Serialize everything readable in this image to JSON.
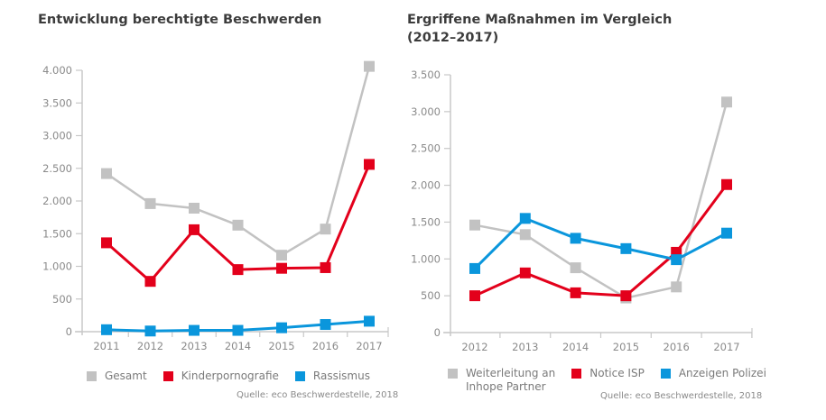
{
  "chart_data": [
    {
      "type": "line",
      "title": "Entwicklung berechtigte Beschwerden",
      "xlabel": "",
      "ylabel": "",
      "x": [
        "2011",
        "2012",
        "2013",
        "2014",
        "2015",
        "2016",
        "2017"
      ],
      "ylim": [
        0,
        4000
      ],
      "yticks": [
        0,
        500,
        1000,
        1500,
        2000,
        2500,
        3000,
        3500,
        4000
      ],
      "ytick_labels": [
        "0",
        "500",
        "1.000",
        "1.500",
        "2.000",
        "2.500",
        "3.000",
        "3.500",
        "4.000"
      ],
      "grid": false,
      "legend_position": "bottom",
      "series": [
        {
          "name": "Gesamt",
          "color": "#c2c2c2",
          "values": [
            2420,
            1960,
            1890,
            1630,
            1170,
            1570,
            4060
          ]
        },
        {
          "name": "Kinderpornografie",
          "color": "#e3001b",
          "values": [
            1360,
            770,
            1560,
            950,
            970,
            980,
            2560
          ]
        },
        {
          "name": "Rassismus",
          "color": "#0a96dc",
          "values": [
            30,
            10,
            20,
            20,
            60,
            110,
            160
          ]
        }
      ],
      "source": "Quelle: eco Beschwerdestelle, 2018"
    },
    {
      "type": "line",
      "title": "Ergriffene Maßnahmen im Vergleich (2012–2017)",
      "title_lines": [
        "Ergriffene Maßnahmen im Vergleich",
        "(2012–2017)"
      ],
      "xlabel": "",
      "ylabel": "",
      "x": [
        "2012",
        "2013",
        "2014",
        "2015",
        "2016",
        "2017"
      ],
      "ylim": [
        0,
        3500
      ],
      "yticks": [
        0,
        500,
        1000,
        1500,
        2000,
        2500,
        3000,
        3500
      ],
      "ytick_labels": [
        "0",
        "500",
        "1.000",
        "1.500",
        "2.000",
        "2.500",
        "3.000",
        "3.500"
      ],
      "grid": false,
      "legend_position": "bottom",
      "series": [
        {
          "name": "Weiterleitung an Inhope Partner",
          "name_lines": [
            "Weiterleitung an",
            "Inhope Partner"
          ],
          "color": "#c2c2c2",
          "values": [
            1460,
            1330,
            880,
            470,
            620,
            3130
          ]
        },
        {
          "name": "Notice ISP",
          "color": "#e3001b",
          "values": [
            500,
            810,
            540,
            500,
            1090,
            2010
          ]
        },
        {
          "name": "Anzeigen Polizei",
          "color": "#0a96dc",
          "values": [
            870,
            1550,
            1280,
            1140,
            990,
            1350
          ]
        }
      ],
      "source": "Quelle: eco Beschwerdestelle, 2018"
    }
  ]
}
